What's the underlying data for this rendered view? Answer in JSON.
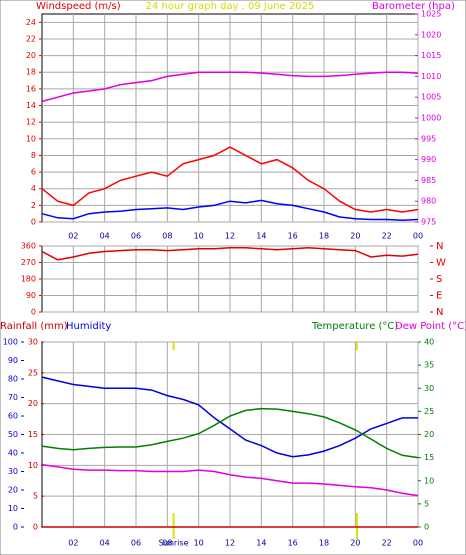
{
  "chart_data": [
    {
      "type": "line",
      "title": "24 hour graph day , 09 June 2025",
      "y_label": "Windspeed (m/s)",
      "y2_label": "Barometer (hpa)",
      "x": [
        0,
        1,
        2,
        3,
        4,
        5,
        6,
        7,
        8,
        9,
        10,
        11,
        12,
        13,
        14,
        15,
        16,
        17,
        18,
        19,
        20,
        21,
        22,
        23,
        24
      ],
      "xlim": [
        0,
        24
      ],
      "xticks": [
        {
          "value": 2,
          "label": "02"
        },
        {
          "value": 4,
          "label": "04"
        },
        {
          "value": 6,
          "label": "06"
        },
        {
          "value": 8,
          "label": "08"
        },
        10,
        12,
        14,
        16,
        18,
        20,
        22,
        {
          "value": 24,
          "label": "00"
        }
      ],
      "ylim": [
        0,
        25
      ],
      "yticks": [
        0,
        2,
        4,
        6,
        8,
        10,
        12,
        14,
        16,
        18,
        20,
        22,
        24
      ],
      "y2lim": [
        975,
        1025
      ],
      "y2ticks": [
        975,
        980,
        985,
        990,
        995,
        1000,
        1005,
        1010,
        1015,
        1020,
        1025
      ],
      "grid": "y",
      "series": [
        {
          "color": "#ff0000",
          "axis": "y",
          "values": [
            4,
            2.5,
            2,
            3.5,
            4,
            5,
            5.5,
            6,
            5.5,
            7,
            7.5,
            8,
            9,
            8,
            7,
            7.5,
            6.5,
            5,
            4,
            2.5,
            1.5,
            1.2,
            1.5,
            1.2,
            1.5
          ]
        },
        {
          "color": "#0000ff",
          "axis": "y",
          "values": [
            1,
            0.5,
            0.4,
            1,
            1.2,
            1.3,
            1.5,
            1.6,
            1.7,
            1.5,
            1.8,
            2,
            2.5,
            2.3,
            2.6,
            2.2,
            2,
            1.6,
            1.2,
            0.6,
            0.4,
            0.3,
            0.3,
            0.2,
            0.3
          ]
        },
        {
          "color": "#e000e0",
          "axis": "y2",
          "values": [
            1004,
            1005,
            1006,
            1006.5,
            1007,
            1008,
            1008.5,
            1009,
            1010,
            1010.5,
            1011,
            1011,
            1011,
            1011,
            1010.8,
            1010.5,
            1010.2,
            1010,
            1010,
            1010.2,
            1010.5,
            1010.8,
            1011,
            1011,
            1010.8
          ]
        }
      ]
    },
    {
      "type": "line",
      "x": [
        0,
        1,
        2,
        3,
        4,
        5,
        6,
        7,
        8,
        9,
        10,
        11,
        12,
        13,
        14,
        15,
        16,
        17,
        18,
        19,
        20,
        21,
        22,
        23,
        24
      ],
      "xlim": [
        0,
        24
      ],
      "xticks": [
        2,
        4,
        6,
        8,
        10,
        12,
        14,
        16,
        18,
        20,
        22,
        24
      ],
      "ylim": [
        0,
        360
      ],
      "yticks": [
        0,
        90,
        180,
        270,
        360
      ],
      "y2lim": [
        0,
        360
      ],
      "y2ticks": [
        {
          "value": 360,
          "label": "N"
        },
        {
          "value": 270,
          "label": "W"
        },
        {
          "value": 180,
          "label": "S"
        },
        {
          "value": 90,
          "label": "E"
        },
        {
          "value": 0,
          "label": "N"
        }
      ],
      "grid": "y",
      "series": [
        {
          "color": "#e00000",
          "axis": "y",
          "values": [
            330,
            285,
            300,
            320,
            330,
            335,
            340,
            340,
            335,
            340,
            345,
            345,
            350,
            350,
            345,
            340,
            345,
            350,
            345,
            340,
            335,
            300,
            310,
            305,
            315
          ]
        }
      ]
    },
    {
      "type": "line",
      "x": [
        0,
        1,
        2,
        3,
        4,
        5,
        6,
        7,
        8,
        9,
        10,
        11,
        12,
        13,
        14,
        15,
        16,
        17,
        18,
        19,
        20,
        21,
        22,
        23,
        24
      ],
      "xlim": [
        0,
        24
      ],
      "xticks": [
        {
          "value": 2,
          "label": "02"
        },
        {
          "value": 4,
          "label": "04"
        },
        {
          "value": 6,
          "label": "06"
        },
        {
          "value": 8,
          "label": "08"
        },
        10,
        12,
        14,
        16,
        18,
        20,
        22,
        {
          "value": 24,
          "label": "00"
        }
      ],
      "ylim": [
        0,
        100
      ],
      "yticks": [
        0,
        10,
        20,
        30,
        40,
        50,
        60,
        70,
        80,
        90,
        100
      ],
      "y3lim": [
        0,
        30
      ],
      "y3ticks": [
        0,
        5,
        10,
        15,
        20,
        25,
        30
      ],
      "y2lim": [
        0,
        40
      ],
      "y2ticks": [
        0,
        5,
        10,
        15,
        20,
        25,
        30,
        35,
        40
      ],
      "grid": "y3",
      "markers": [
        {
          "label": "Sunrise",
          "x": 8.4
        },
        {
          "x": 20.1
        }
      ],
      "series": [
        {
          "name": "Rainfall (mm)",
          "color": "#cc0000",
          "axis": "y3",
          "values": [
            0,
            0,
            0,
            0,
            0,
            0,
            0,
            0,
            0,
            0,
            0,
            0,
            0,
            0,
            0,
            0,
            0,
            0,
            0,
            0,
            0,
            0,
            0,
            0,
            0
          ]
        },
        {
          "name": "Humidity",
          "color": "#0000dd",
          "axis": "y",
          "values": [
            81,
            79,
            77,
            76,
            75,
            75,
            75,
            74,
            71,
            69,
            66,
            59,
            53,
            47,
            44,
            40,
            38,
            39,
            41,
            44,
            48,
            53,
            56,
            59,
            59
          ]
        },
        {
          "name": "Temperature (°C)",
          "color": "#008000",
          "axis": "y2",
          "values": [
            17.5,
            17,
            16.7,
            17,
            17.2,
            17.3,
            17.3,
            17.8,
            18.5,
            19.2,
            20.2,
            22,
            24,
            25.2,
            25.6,
            25.5,
            25,
            24.5,
            23.8,
            22.5,
            21,
            19,
            17,
            15.5,
            15
          ]
        },
        {
          "name": "Dew Point (°C)",
          "color": "#e000e0",
          "axis": "y2",
          "values": [
            13.5,
            13,
            12.5,
            12.3,
            12.3,
            12.2,
            12.2,
            12,
            12,
            12,
            12.3,
            12,
            11.3,
            10.8,
            10.5,
            10,
            9.5,
            9.5,
            9.3,
            9,
            8.7,
            8.5,
            8,
            7.3,
            6.8
          ]
        }
      ]
    }
  ]
}
